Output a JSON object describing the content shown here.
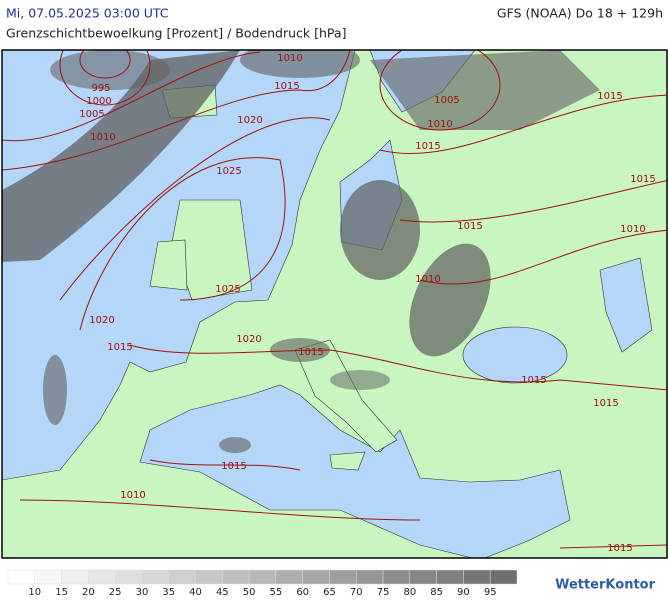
{
  "header": {
    "date": "Mi, 07.05.2025 03:00 UTC",
    "model": "GFS (NOAA) Do 18 + 129h",
    "subtitle": "Grenzschichtbewoelkung [Prozent] / Bodendruck [hPa]"
  },
  "isobar_labels": [
    "1010",
    "1015",
    "995",
    "1000",
    "1005",
    "1010",
    "1020",
    "1025",
    "1005",
    "1010",
    "1015",
    "1015",
    "1015",
    "1010",
    "1015",
    "1010",
    "1025",
    "1020",
    "1015",
    "1020",
    "1015",
    "1015",
    "1015",
    "1015",
    "1010",
    "1015"
  ],
  "legend": {
    "values": [
      10,
      15,
      20,
      25,
      30,
      35,
      40,
      45,
      50,
      55,
      60,
      65,
      70,
      75,
      80,
      85,
      90,
      95
    ]
  },
  "brand": "WetterKontor"
}
